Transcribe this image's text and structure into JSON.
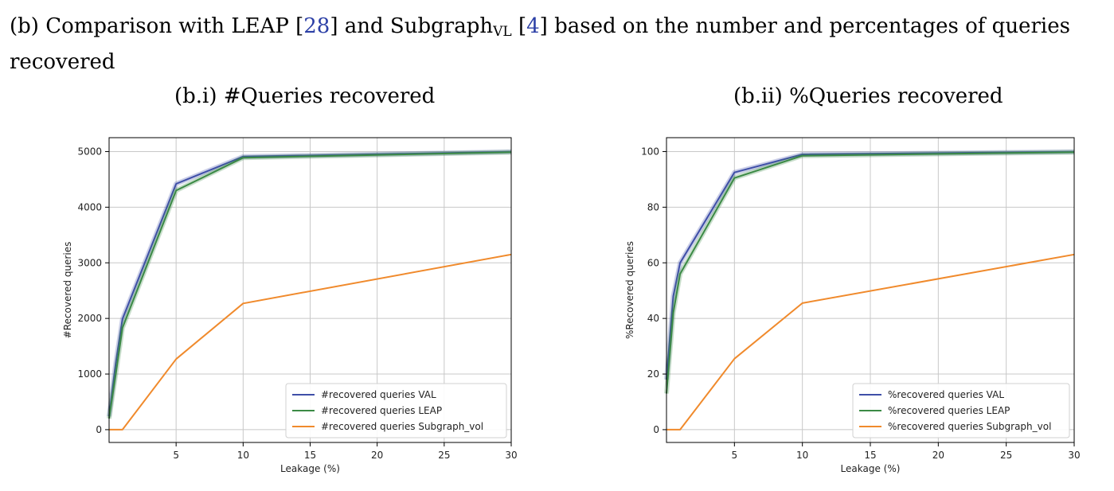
{
  "caption": {
    "prefix": "(b) Comparison with LEAP",
    "cite1": "28",
    "mid": "and Subgraph",
    "sub": "VL",
    "cite2": "4",
    "suffix": "based on the number and percentages of queries recovered"
  },
  "subtitles": [
    "(b.i) #Queries recovered",
    "(b.ii) %Queries recovered"
  ],
  "colors": {
    "val": "#3f4fa8",
    "leap": "#3b8a45",
    "subgraph": "#f08a2c",
    "grid": "#c8c8c8"
  },
  "chart_data": [
    {
      "type": "line",
      "xlabel": "Leakage (%)",
      "ylabel": "#Recovered queries",
      "xlim": [
        0,
        30
      ],
      "ylim": [
        -230,
        5250
      ],
      "xticks": [
        5,
        10,
        15,
        20,
        25,
        30
      ],
      "yticks": [
        0,
        1000,
        2000,
        3000,
        4000,
        5000
      ],
      "grid": true,
      "legend_position": "lower-right",
      "series": [
        {
          "name": "#recovered queries VAL",
          "color": "#3f4fa8",
          "x": [
            0,
            0.5,
            1,
            5,
            10,
            30
          ],
          "y": [
            240,
            1200,
            1990,
            4420,
            4910,
            4995
          ]
        },
        {
          "name": "#recovered queries LEAP",
          "color": "#3b8a45",
          "x": [
            0,
            0.5,
            1,
            5,
            10,
            30
          ],
          "y": [
            200,
            1000,
            1830,
            4300,
            4890,
            4990
          ]
        },
        {
          "name": "#recovered queries Subgraph_vol",
          "color": "#f08a2c",
          "x": [
            0,
            1,
            5,
            10,
            30
          ],
          "y": [
            0,
            0,
            1270,
            2270,
            3150
          ]
        }
      ]
    },
    {
      "type": "line",
      "xlabel": "Leakage (%)",
      "ylabel": "%Recovered queries",
      "xlim": [
        0,
        30
      ],
      "ylim": [
        -4.6,
        105
      ],
      "xticks": [
        5,
        10,
        15,
        20,
        25,
        30
      ],
      "yticks": [
        0,
        20,
        40,
        60,
        80,
        100
      ],
      "grid": true,
      "legend_position": "lower-right",
      "series": [
        {
          "name": "%recovered queries VAL",
          "color": "#3f4fa8",
          "x": [
            0,
            0.5,
            1,
            5,
            10,
            30
          ],
          "y": [
            18,
            48,
            60,
            92.5,
            99,
            99.9
          ]
        },
        {
          "name": "%recovered queries LEAP",
          "color": "#3b8a45",
          "x": [
            0,
            0.5,
            1,
            5,
            10,
            30
          ],
          "y": [
            13,
            42,
            56,
            90.5,
            98.5,
            99.8
          ]
        },
        {
          "name": "%recovered queries Subgraph_vol",
          "color": "#f08a2c",
          "x": [
            0,
            1,
            5,
            10,
            30
          ],
          "y": [
            0,
            0,
            25.5,
            45.5,
            63
          ]
        }
      ]
    }
  ]
}
